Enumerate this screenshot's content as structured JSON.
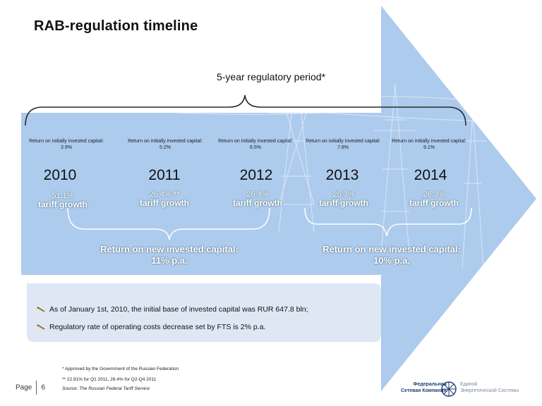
{
  "title": "RAB-regulation timeline",
  "period_label": "5-year regulatory period*",
  "years": [
    {
      "year": "2010",
      "capital": "Return on initially invested capital: 3.9%",
      "tariff_pct": "51.1%",
      "tariff_label": "tariff growth"
    },
    {
      "year": "2011",
      "capital": "Return on initially invested capital: 5.2%",
      "tariff_pct": "26.4% **",
      "tariff_label": "tariff growth"
    },
    {
      "year": "2012",
      "capital": "Return on initially invested capital: 6.5%",
      "tariff_pct": "26.4%",
      "tariff_label": "tariff growth"
    },
    {
      "year": "2013",
      "capital": "Return on initially invested capital: 7.8%",
      "tariff_pct": "26.3%",
      "tariff_label": "tariff growth"
    },
    {
      "year": "2014",
      "capital": "Return on initially invested capital: 9.1%",
      "tariff_pct": "26.3%",
      "tariff_label": "tariff growth"
    }
  ],
  "new_capital": [
    {
      "line1": "Return on new invested capital:",
      "line2": "11% p.a."
    },
    {
      "line1": "Return on new invested capital:",
      "line2": "10% p.a."
    }
  ],
  "bullets": [
    "As of January 1st, 2010, the initial base of invested capital was RUR 647.8 bln;",
    "Regulatory rate of operating costs decrease set by FTS is 2% p.a."
  ],
  "footnotes": {
    "note1": "* Approved by the Government of the Russian Federation",
    "note2": "** 22.91% for Q1 2011, 28.4% for Q2-Q4 2011",
    "source": "Source: The Russian Federal Tariff Service"
  },
  "page": {
    "label": "Page",
    "number": "6"
  },
  "logo": {
    "left_line1": "Федеральная",
    "left_line2": "Сетевая Компания",
    "right_line1": "Единой",
    "right_line2": "Энергетической Системы"
  },
  "colors": {
    "arrow": "#a9c8ec",
    "panel": "#dde6f3",
    "brace": "#2a2a2a",
    "logo": "#1f3d73"
  }
}
